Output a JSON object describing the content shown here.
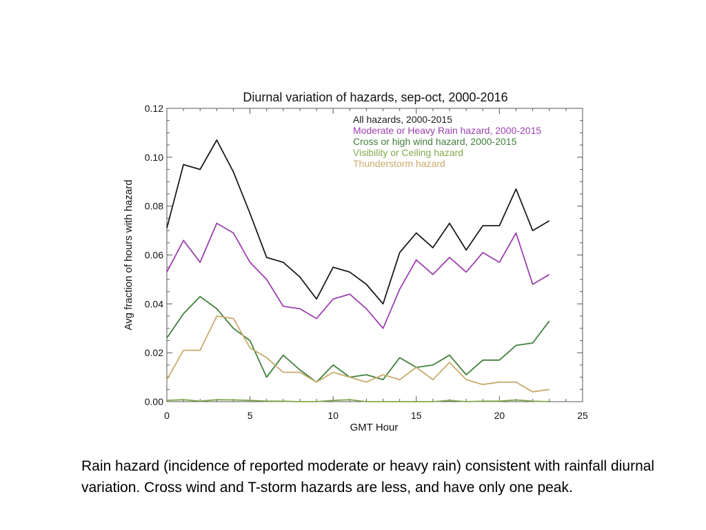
{
  "chart_data": {
    "type": "line",
    "title": "Diurnal variation of hazards, sep-oct, 2000-2016",
    "xlabel": "GMT Hour",
    "ylabel": "Avg fraction of hours with hazard",
    "xlim": [
      0,
      25
    ],
    "ylim": [
      0,
      0.12
    ],
    "x_ticks": [
      "0",
      "5",
      "10",
      "15",
      "20",
      "25"
    ],
    "y_ticks": [
      "0.00",
      "0.02",
      "0.04",
      "0.06",
      "0.08",
      "0.10",
      "0.12"
    ],
    "x": [
      0,
      1,
      2,
      3,
      4,
      5,
      6,
      7,
      8,
      9,
      10,
      11,
      12,
      13,
      14,
      15,
      16,
      17,
      18,
      19,
      20,
      21,
      22,
      23
    ],
    "series": [
      {
        "name": "All hazards, 2000-2015",
        "color": "#1a1a1a",
        "values": [
          0.071,
          0.097,
          0.095,
          0.107,
          0.094,
          0.077,
          0.059,
          0.057,
          0.051,
          0.042,
          0.055,
          0.053,
          0.048,
          0.04,
          0.061,
          0.069,
          0.063,
          0.073,
          0.062,
          0.072,
          0.072,
          0.087,
          0.07,
          0.074
        ]
      },
      {
        "name": "Moderate or Heavy Rain hazard, 2000-2015",
        "color": "#9b3fae",
        "values": [
          0.053,
          0.066,
          0.057,
          0.073,
          0.069,
          0.057,
          0.05,
          0.039,
          0.038,
          0.034,
          0.042,
          0.044,
          0.038,
          0.03,
          0.046,
          0.058,
          0.052,
          0.059,
          0.053,
          0.061,
          0.057,
          0.069,
          0.048,
          0.052
        ]
      },
      {
        "name": "Cross or high wind hazard, 2000-2015",
        "color": "#3f7f3a",
        "values": [
          0.026,
          0.036,
          0.043,
          0.038,
          0.03,
          0.025,
          0.01,
          0.019,
          0.013,
          0.008,
          0.015,
          0.01,
          0.011,
          0.009,
          0.018,
          0.014,
          0.015,
          0.019,
          0.011,
          0.017,
          0.017,
          0.023,
          0.024,
          0.033
        ]
      },
      {
        "name": "Visibility or Ceiling hazard",
        "color": "#7fa84a",
        "values": [
          0.0005,
          0.0008,
          0.0002,
          0.0008,
          0.0007,
          0.0005,
          0.0002,
          0.0002,
          0.0,
          0.0,
          0.0005,
          0.0008,
          0.0,
          0.0,
          0.0,
          0.0,
          0.0,
          0.0005,
          0.0,
          0.0002,
          0.0002,
          0.0007,
          0.0002,
          0.0
        ]
      },
      {
        "name": "Thunderstorm hazard",
        "color": "#c8a96a",
        "values": [
          0.009,
          0.021,
          0.021,
          0.035,
          0.034,
          0.022,
          0.018,
          0.012,
          0.012,
          0.008,
          0.012,
          0.01,
          0.008,
          0.011,
          0.009,
          0.014,
          0.009,
          0.016,
          0.009,
          0.007,
          0.008,
          0.008,
          0.004,
          0.005
        ]
      }
    ],
    "legend_position": "top-right"
  },
  "caption": "Rain hazard (incidence of reported moderate or heavy rain) consistent with rainfall diurnal variation.  Cross wind and T-storm hazards are less, and have only one peak."
}
